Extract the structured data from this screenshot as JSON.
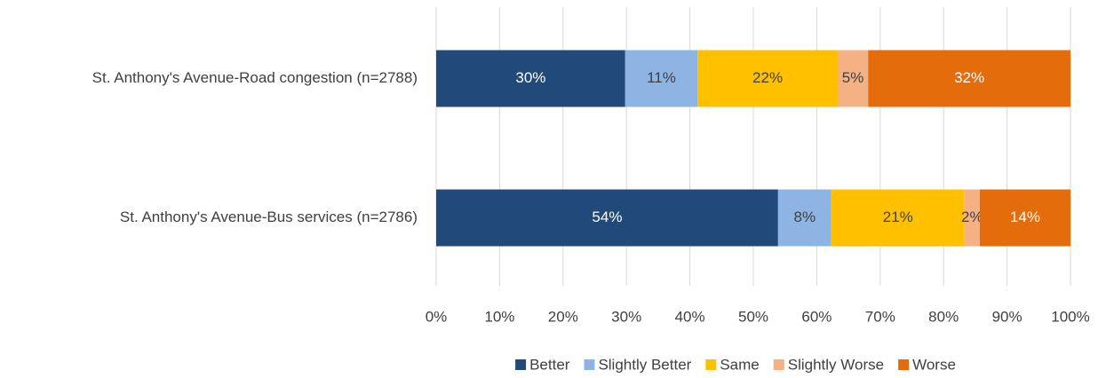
{
  "chart_data": {
    "type": "stacked_bar_horizontal",
    "categories": [
      "St. Anthony's Avenue-Road congestion (n=2788)",
      "St. Anthony's Avenue-Bus services (n=2786)"
    ],
    "series": [
      {
        "name": "Better",
        "color": "#214a7b",
        "values": [
          29.8,
          53.9
        ],
        "value_labels": [
          "30%",
          "54%"
        ]
      },
      {
        "name": "Slightly Better",
        "color": "#8eb4e3",
        "values": [
          11.4,
          8.4
        ],
        "value_labels": [
          "11%",
          "8%"
        ]
      },
      {
        "name": "Same",
        "color": "#ffc000",
        "values": [
          22.1,
          21.0
        ],
        "value_labels": [
          "22%",
          "21%"
        ]
      },
      {
        "name": "Slightly Worse",
        "color": "#f4b183",
        "values": [
          4.8,
          2.4
        ],
        "value_labels": [
          "5%",
          "2%"
        ]
      },
      {
        "name": "Worse",
        "color": "#e46c0a",
        "values": [
          31.9,
          14.3
        ],
        "value_labels": [
          "32%",
          "14%"
        ]
      }
    ],
    "xlim": [
      0,
      100
    ],
    "xticks": [
      {
        "value": 0,
        "label": "0%"
      },
      {
        "value": 10,
        "label": "10%"
      },
      {
        "value": 20,
        "label": "20%"
      },
      {
        "value": 30,
        "label": "30%"
      },
      {
        "value": 40,
        "label": "40%"
      },
      {
        "value": 50,
        "label": "50%"
      },
      {
        "value": 60,
        "label": "60%"
      },
      {
        "value": 70,
        "label": "70%"
      },
      {
        "value": 80,
        "label": "80%"
      },
      {
        "value": 90,
        "label": "90%"
      },
      {
        "value": 100,
        "label": "100%"
      }
    ],
    "grid": true,
    "legend": "bottom"
  }
}
